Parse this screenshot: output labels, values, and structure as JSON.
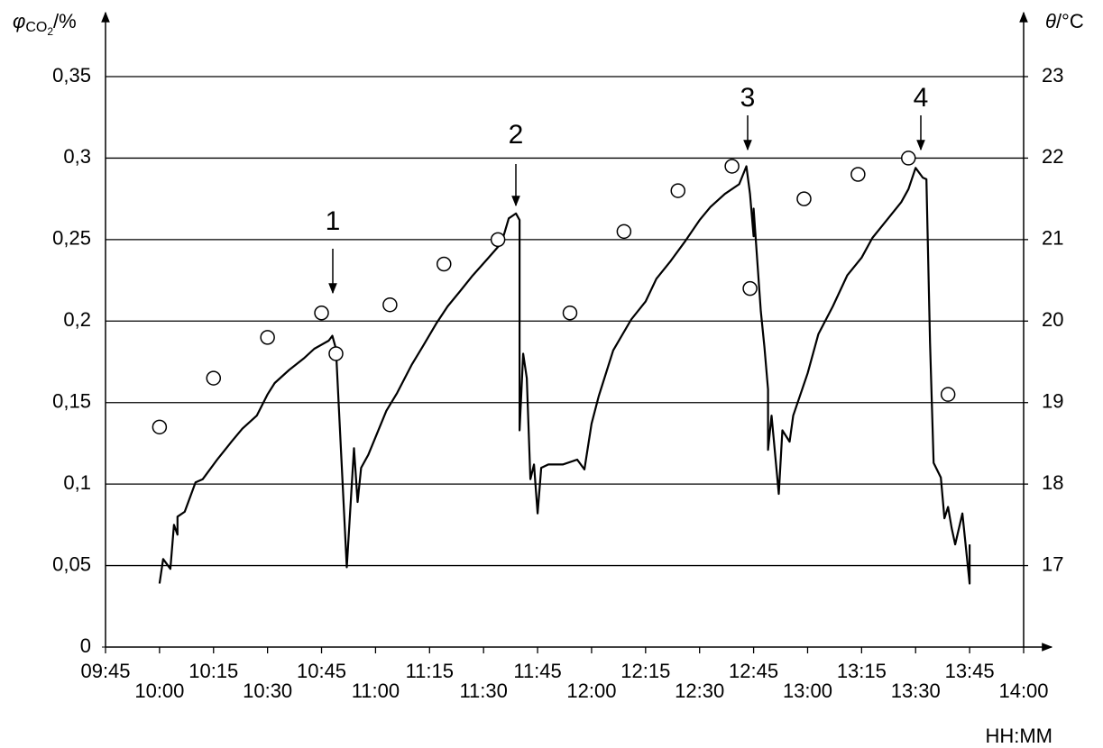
{
  "chart_data": {
    "type": "line",
    "ylabel": {
      "symbol": "φ",
      "subscript": "CO",
      "subsubscript": "2",
      "unit": "/%"
    },
    "y2label": {
      "symbol": "θ",
      "unit": "/°C"
    },
    "xlabel": "HH:MM",
    "xlim": [
      "09:45",
      "14:00"
    ],
    "xticks": [
      "09:45",
      "10:00",
      "10:15",
      "10:30",
      "10:45",
      "11:00",
      "11:15",
      "11:30",
      "11:45",
      "12:00",
      "12:15",
      "12:30",
      "12:45",
      "13:00",
      "13:15",
      "13:30",
      "13:45",
      "14:00"
    ],
    "ylim": [
      0,
      0.35
    ],
    "yticks": [
      0,
      {
        "value": 0.05,
        "label": "0,05"
      },
      {
        "value": 0.1,
        "label": "0,1"
      },
      {
        "value": 0.15,
        "label": "0,15"
      },
      {
        "value": 0.2,
        "label": "0,2"
      },
      {
        "value": 0.25,
        "label": "0,25"
      },
      {
        "value": 0.3,
        "label": "0,3"
      },
      {
        "value": 0.35,
        "label": "0,35"
      }
    ],
    "y2lim": [
      16,
      23
    ],
    "y2ticks": [
      17,
      18,
      19,
      20,
      21,
      22,
      23
    ],
    "grid": true,
    "annotations": [
      "1",
      "2",
      "3",
      "4"
    ],
    "series": [
      {
        "color": "#000000",
        "marker": "line",
        "x": [
          "10:00",
          "10:01",
          "10:03",
          "10:04",
          "10:05",
          "10:05",
          "10:07",
          "10:10",
          "10:12",
          "10:16",
          "10:20",
          "10:23",
          "10:27",
          "10:30",
          "10:32",
          "10:36",
          "10:40",
          "10:43",
          "10:47",
          "10:48",
          "10:49",
          "10:52",
          "10:54",
          "10:55",
          "10:56",
          "10:58",
          "11:03",
          "11:06",
          "11:10",
          "11:13",
          "11:17",
          "11:20",
          "11:23",
          "11:27",
          "11:31",
          "11:35",
          "11:37",
          "11:39",
          "11:40",
          "11:40",
          "11:41",
          "11:42",
          "11:43",
          "11:44",
          "11:45",
          "11:46",
          "11:48",
          "11:52",
          "11:56",
          "11:58",
          "12:00",
          "12:02",
          "12:06",
          "12:11",
          "12:15",
          "12:18",
          "12:22",
          "12:26",
          "12:30",
          "12:33",
          "12:37",
          "12:41",
          "12:43",
          "12:44",
          "12:45",
          "12:45",
          "12:47",
          "12:48",
          "12:49",
          "12:49",
          "12:50",
          "12:52",
          "12:53",
          "12:55",
          "12:56",
          "13:00",
          "13:03",
          "13:07",
          "13:11",
          "13:15",
          "13:18",
          "13:22",
          "13:26",
          "13:28",
          "13:30",
          "13:32",
          "13:33",
          "13:34",
          "13:35",
          "13:37",
          "13:38",
          "13:39",
          "13:40",
          "13:41",
          "13:43",
          "13:45",
          "13:45"
        ],
        "values": [
          0.039,
          0.054,
          0.048,
          0.075,
          0.069,
          0.08,
          0.083,
          0.101,
          0.103,
          0.115,
          0.126,
          0.134,
          0.142,
          0.155,
          0.162,
          0.17,
          0.177,
          0.183,
          0.188,
          0.191,
          0.183,
          0.049,
          0.122,
          0.089,
          0.11,
          0.118,
          0.145,
          0.156,
          0.173,
          0.184,
          0.199,
          0.209,
          0.217,
          0.228,
          0.238,
          0.248,
          0.263,
          0.266,
          0.262,
          0.133,
          0.18,
          0.165,
          0.103,
          0.112,
          0.082,
          0.11,
          0.112,
          0.112,
          0.115,
          0.109,
          0.137,
          0.154,
          0.182,
          0.201,
          0.212,
          0.226,
          0.237,
          0.249,
          0.262,
          0.27,
          0.278,
          0.284,
          0.295,
          0.278,
          0.252,
          0.269,
          0.206,
          0.184,
          0.158,
          0.121,
          0.142,
          0.094,
          0.133,
          0.126,
          0.142,
          0.168,
          0.192,
          0.209,
          0.228,
          0.239,
          0.251,
          0.262,
          0.273,
          0.281,
          0.294,
          0.288,
          0.287,
          0.187,
          0.113,
          0.104,
          0.079,
          0.086,
          0.073,
          0.063,
          0.082,
          0.039,
          0.063
        ]
      },
      {
        "color": "#000000",
        "marker": "circle",
        "axis": "y2",
        "x": [
          "10:00",
          "10:15",
          "10:30",
          "10:45",
          "10:49",
          "11:04",
          "11:19",
          "11:34",
          "11:54",
          "12:09",
          "12:24",
          "12:39",
          "12:44",
          "12:59",
          "13:14",
          "13:28",
          "13:39"
        ],
        "values": [
          18.7,
          19.3,
          19.8,
          20.1,
          19.6,
          20.2,
          20.7,
          21.0,
          20.1,
          21.1,
          21.6,
          21.9,
          20.4,
          21.5,
          21.8,
          22.0,
          19.1
        ]
      }
    ]
  }
}
